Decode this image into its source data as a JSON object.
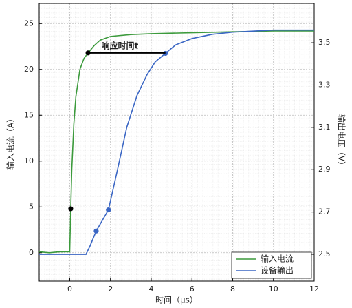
{
  "chart_data": {
    "type": "line",
    "xlabel": "时间（μs）",
    "ylabel": "输入电流（A）",
    "y2label": "输出电压（V）",
    "xlim": [
      -1.5,
      12
    ],
    "xticks": [
      0,
      2,
      4,
      6,
      8,
      10,
      12
    ],
    "ylim": [
      -3.1,
      27.2
    ],
    "yticks": [
      0,
      5,
      10,
      15,
      20,
      25
    ],
    "y2lim": [
      2.373,
      3.686
    ],
    "y2ticks": [
      2.5,
      2.7,
      2.9,
      3.1,
      3.3,
      3.5
    ],
    "grid": true,
    "legend": "lower right",
    "series": [
      {
        "name": "输入电流",
        "color": "#3c9a3c",
        "x": [
          -1.5,
          -1,
          -0.5,
          0,
          0.05,
          0.1,
          0.2,
          0.3,
          0.5,
          0.7,
          0.9,
          1.2,
          1.5,
          2,
          3,
          4,
          6,
          8,
          10,
          12
        ],
        "values": [
          0.1,
          0,
          0.1,
          0.1,
          4.8,
          9,
          14,
          17,
          20,
          21.2,
          21.8,
          22.6,
          23.2,
          23.6,
          23.8,
          23.9,
          24.0,
          24.1,
          24.2,
          24.2
        ],
        "markers": {
          "x": [
            0.05,
            0.9
          ],
          "values": [
            4.8,
            21.8
          ]
        }
      },
      {
        "name": "设备输出",
        "color": "#3a66c4",
        "axis": "y2",
        "x": [
          -1.5,
          -0.5,
          0.5,
          0.8,
          1.0,
          1.3,
          1.6,
          1.9,
          2.3,
          2.8,
          3.3,
          3.8,
          4.2,
          4.7,
          5.2,
          6,
          7,
          8,
          10,
          12
        ],
        "values": [
          2.5,
          2.5,
          2.5,
          2.5,
          2.54,
          2.61,
          2.66,
          2.71,
          2.88,
          3.1,
          3.25,
          3.35,
          3.41,
          3.45,
          3.49,
          3.52,
          3.54,
          3.55,
          3.56,
          3.56
        ],
        "markers": {
          "x": [
            1.3,
            1.9,
            4.7
          ],
          "values": [
            2.61,
            2.71,
            3.45
          ]
        }
      }
    ],
    "annotation": {
      "text": "响应时间t",
      "x": [
        0.9,
        4.7
      ],
      "y": 21.8
    }
  }
}
